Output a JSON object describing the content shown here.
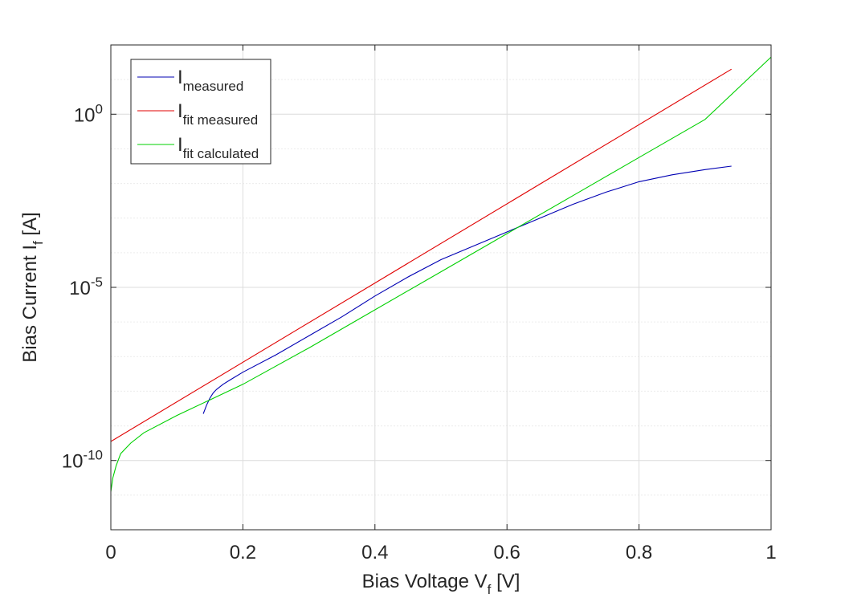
{
  "chart_data": {
    "type": "line",
    "title": "",
    "xlabel": {
      "main": "Bias Voltage V",
      "sub": "f",
      "unit": " [V]"
    },
    "ylabel": {
      "main": "Bias Current I",
      "sub": "f",
      "unit": " [A]"
    },
    "xlim": [
      0,
      1
    ],
    "ylim_log10": [
      -12,
      2
    ],
    "yscale": "log",
    "grid": true,
    "minor_grid_y": true,
    "legend_position": "top-left",
    "x_ticks": [
      {
        "value": 0,
        "label": "0"
      },
      {
        "value": 0.2,
        "label": "0.2"
      },
      {
        "value": 0.4,
        "label": "0.4"
      },
      {
        "value": 0.6,
        "label": "0.6"
      },
      {
        "value": 0.8,
        "label": "0.8"
      },
      {
        "value": 1,
        "label": "1"
      }
    ],
    "y_ticks": [
      {
        "exp": 0,
        "base": "10",
        "power": "0"
      },
      {
        "exp": -5,
        "base": "10",
        "power": "-5"
      },
      {
        "exp": -10,
        "base": "10",
        "power": "-10"
      }
    ],
    "series": [
      {
        "name": "I",
        "name_sub": "measured",
        "color": "#0000b3",
        "x": [
          0.14,
          0.145,
          0.15,
          0.155,
          0.16,
          0.17,
          0.18,
          0.2,
          0.25,
          0.3,
          0.35,
          0.4,
          0.45,
          0.5,
          0.55,
          0.6,
          0.65,
          0.7,
          0.75,
          0.8,
          0.85,
          0.9,
          0.94
        ],
        "log10y": [
          -8.65,
          -8.4,
          -8.2,
          -8.05,
          -7.95,
          -7.8,
          -7.68,
          -7.45,
          -6.95,
          -6.4,
          -5.85,
          -5.25,
          -4.7,
          -4.2,
          -3.8,
          -3.4,
          -3.0,
          -2.6,
          -2.25,
          -1.95,
          -1.75,
          -1.6,
          -1.5
        ]
      },
      {
        "name": "I",
        "name_sub": "fit measured",
        "color": "#e00000",
        "x": [
          0,
          0.94
        ],
        "log10y": [
          -9.45,
          1.3
        ]
      },
      {
        "name": "I",
        "name_sub": "fit calculated",
        "color": "#00d000",
        "x": [
          0,
          0.003,
          0.008,
          0.015,
          0.03,
          0.05,
          0.1,
          0.15,
          0.2,
          0.3,
          0.4,
          0.5,
          0.6,
          0.7,
          0.8,
          0.9,
          1.0
        ],
        "log10y": [
          -10.9,
          -10.5,
          -10.15,
          -9.8,
          -9.5,
          -9.2,
          -8.7,
          -8.25,
          -7.8,
          -6.75,
          -5.65,
          -4.55,
          -3.45,
          -2.35,
          -1.25,
          -0.15,
          1.65
        ]
      }
    ]
  }
}
